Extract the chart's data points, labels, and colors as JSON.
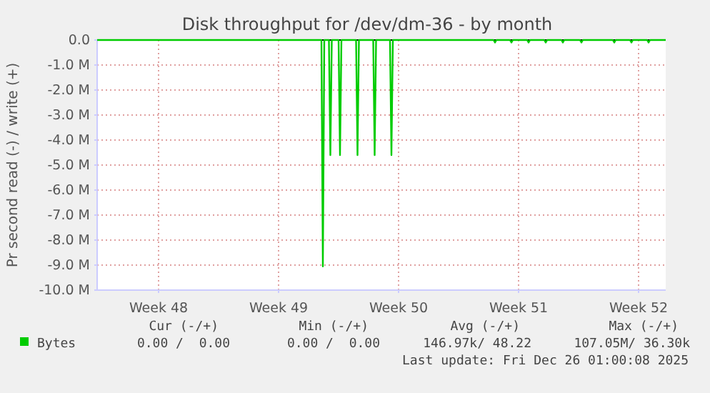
{
  "chart_data": {
    "type": "line",
    "title": "Disk throughput for /dev/dm-36 - by month",
    "ylabel": "Pr second read (-) / write (+)",
    "x": [
      "2025-11-23T22:00",
      "2025-12-07T00:00",
      "2025-12-07T02:00",
      "2025-12-07T04:00",
      "2025-12-07T10:30",
      "2025-12-07T12:30",
      "2025-12-07T14:30",
      "2025-12-08T00:00",
      "2025-12-08T02:00",
      "2025-12-08T04:00",
      "2025-12-09T00:30",
      "2025-12-09T02:30",
      "2025-12-09T04:30",
      "2025-12-10T00:30",
      "2025-12-10T02:30",
      "2025-12-10T04:30",
      "2025-12-11T00:00",
      "2025-12-11T02:00",
      "2025-12-11T04:00",
      "2025-12-17T01:00",
      "2025-12-17T03:00",
      "2025-12-17T05:00",
      "2025-12-18T00:00",
      "2025-12-18T02:00",
      "2025-12-18T04:00",
      "2025-12-19T00:00",
      "2025-12-19T02:00",
      "2025-12-19T04:00",
      "2025-12-20T00:00",
      "2025-12-20T02:00",
      "2025-12-20T04:00",
      "2025-12-21T00:00",
      "2025-12-21T02:00",
      "2025-12-21T04:00",
      "2025-12-22T02:00",
      "2025-12-22T04:00",
      "2025-12-22T06:00",
      "2025-12-24T00:00",
      "2025-12-24T02:00",
      "2025-12-24T04:00",
      "2025-12-25T00:00",
      "2025-12-25T02:00",
      "2025-12-25T04:00",
      "2025-12-26T00:00",
      "2025-12-26T02:00",
      "2025-12-26T04:00",
      "2025-12-27T02:00"
    ],
    "series": [
      {
        "name": "Bytes",
        "color": "#00cc00",
        "values": [
          0,
          0,
          -9050000,
          0,
          0,
          -4600000,
          0,
          0,
          -4600000,
          0,
          0,
          -4600000,
          0,
          0,
          -4600000,
          0,
          0,
          -4600000,
          0,
          0,
          -100000,
          0,
          0,
          -100000,
          0,
          0,
          -100000,
          0,
          0,
          -100000,
          0,
          0,
          -100000,
          0,
          0,
          -100000,
          0,
          0,
          -100000,
          0,
          0,
          -100000,
          0,
          0,
          -100000,
          0,
          0
        ]
      }
    ],
    "xlim": [
      "2025-11-23T22:00",
      "2025-12-27T02:00"
    ],
    "xticks": [
      {
        "value": "2025-11-27T12:00",
        "label": "Week 48"
      },
      {
        "value": "2025-12-04T12:00",
        "label": "Week 49"
      },
      {
        "value": "2025-12-11T12:00",
        "label": "Week 50"
      },
      {
        "value": "2025-12-18T12:00",
        "label": "Week 51"
      },
      {
        "value": "2025-12-25T12:00",
        "label": "Week 52"
      }
    ],
    "ylim": [
      -10000000,
      0
    ],
    "yticks": [
      {
        "value": -10000000,
        "label": "-10.0 M"
      },
      {
        "value": -9000000,
        "label": "-9.0 M"
      },
      {
        "value": -8000000,
        "label": "-8.0 M"
      },
      {
        "value": -7000000,
        "label": "-7.0 M"
      },
      {
        "value": -6000000,
        "label": "-6.0 M"
      },
      {
        "value": -5000000,
        "label": "-5.0 M"
      },
      {
        "value": -4000000,
        "label": "-4.0 M"
      },
      {
        "value": -3000000,
        "label": "-3.0 M"
      },
      {
        "value": -2000000,
        "label": "-2.0 M"
      },
      {
        "value": -1000000,
        "label": "-1.0 M"
      },
      {
        "value": 0,
        "label": "0.0"
      }
    ],
    "ref_lines": [
      {
        "axis": "y",
        "value": 0,
        "color": "#000000"
      }
    ],
    "grid": true,
    "legend": "bottom left",
    "annotations": [
      "Cur (-/+)",
      "Min (-/+)",
      "Avg (-/+)",
      "Max (-/+)",
      "0.00 /  0.00",
      "0.00 /  0.00",
      "146.97k/ 48.22",
      "107.05M/ 36.30k",
      "Last update: Fri Dec 26 01:00:08 2025"
    ]
  }
}
